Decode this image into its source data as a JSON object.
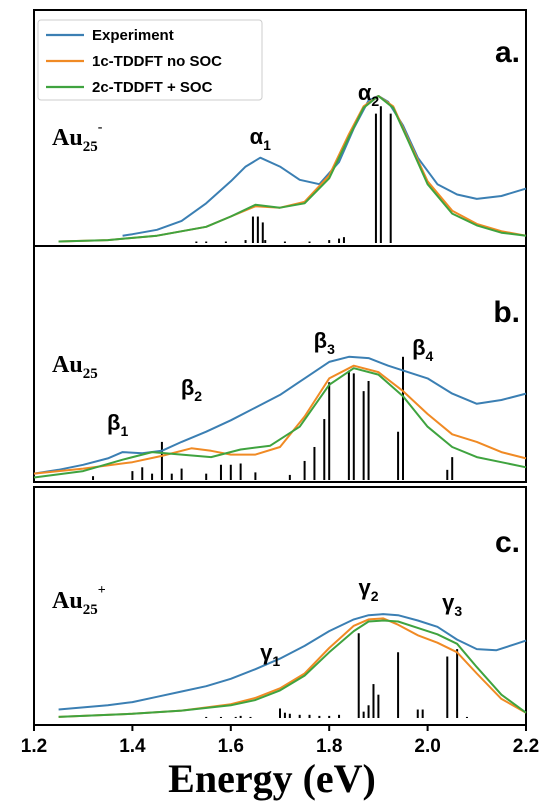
{
  "figure": {
    "xlabel": "Energy (eV)",
    "x_ticks": [
      "1.2",
      "1.4",
      "1.6",
      "1.8",
      "2.0",
      "2.2"
    ]
  },
  "legend": {
    "items": [
      {
        "label": "Experiment",
        "color": "#3b7fb3"
      },
      {
        "label": "1c-TDDFT no SOC",
        "color": "#f08a24"
      },
      {
        "label": "2c-TDDFT + SOC",
        "color": "#3fa33f"
      }
    ]
  },
  "panels": [
    {
      "letter": "a.",
      "species": {
        "base": "Au",
        "sub": "25",
        "sup": "-"
      },
      "peaks": [
        {
          "base": "α",
          "sub": "1",
          "x": 1.66
        },
        {
          "base": "α",
          "sub": "2",
          "x": 1.88
        }
      ]
    },
    {
      "letter": "b.",
      "species": {
        "base": "Au",
        "sub": "25",
        "sup": ""
      },
      "peaks": [
        {
          "base": "β",
          "sub": "1",
          "x": 1.37
        },
        {
          "base": "β",
          "sub": "2",
          "x": 1.52
        },
        {
          "base": "β",
          "sub": "3",
          "x": 1.79
        },
        {
          "base": "β",
          "sub": "4",
          "x": 1.99
        }
      ]
    },
    {
      "letter": "c.",
      "species": {
        "base": "Au",
        "sub": "25",
        "sup": "+"
      },
      "peaks": [
        {
          "base": "γ",
          "sub": "1",
          "x": 1.68
        },
        {
          "base": "γ",
          "sub": "2",
          "x": 1.88
        },
        {
          "base": "γ",
          "sub": "3",
          "x": 2.05
        }
      ]
    }
  ],
  "chart_data": [
    {
      "type": "line",
      "panel": "a",
      "xlim": [
        1.2,
        2.2
      ],
      "ylim": [
        0,
        1.05
      ],
      "series": [
        {
          "name": "Experiment",
          "color": "#3b7fb3",
          "x": [
            1.38,
            1.4,
            1.45,
            1.5,
            1.55,
            1.6,
            1.63,
            1.66,
            1.7,
            1.74,
            1.78,
            1.82,
            1.85,
            1.88,
            1.9,
            1.92,
            1.95,
            1.98,
            2.02,
            2.06,
            2.1,
            2.15,
            2.2
          ],
          "y": [
            0.05,
            0.06,
            0.09,
            0.15,
            0.27,
            0.42,
            0.52,
            0.58,
            0.52,
            0.43,
            0.4,
            0.55,
            0.78,
            0.97,
            1.0,
            0.96,
            0.8,
            0.58,
            0.4,
            0.33,
            0.3,
            0.32,
            0.37
          ]
        },
        {
          "name": "1c-TDDFT no SOC",
          "color": "#f08a24",
          "x": [
            1.25,
            1.35,
            1.45,
            1.55,
            1.6,
            1.65,
            1.7,
            1.75,
            1.8,
            1.84,
            1.87,
            1.9,
            1.93,
            1.96,
            2.0,
            2.05,
            2.1,
            2.15,
            2.2
          ],
          "y": [
            0.01,
            0.02,
            0.05,
            0.11,
            0.18,
            0.25,
            0.24,
            0.28,
            0.46,
            0.74,
            0.93,
            1.0,
            0.93,
            0.71,
            0.42,
            0.22,
            0.13,
            0.08,
            0.05
          ]
        },
        {
          "name": "2c-TDDFT + SOC",
          "color": "#3fa33f",
          "x": [
            1.25,
            1.35,
            1.45,
            1.55,
            1.6,
            1.65,
            1.7,
            1.75,
            1.8,
            1.84,
            1.87,
            1.9,
            1.93,
            1.96,
            2.0,
            2.05,
            2.1,
            2.15,
            2.2
          ],
          "y": [
            0.01,
            0.02,
            0.05,
            0.11,
            0.18,
            0.26,
            0.24,
            0.27,
            0.44,
            0.72,
            0.92,
            1.0,
            0.92,
            0.7,
            0.4,
            0.2,
            0.12,
            0.07,
            0.05
          ]
        }
      ],
      "sticks": {
        "x": [
          1.53,
          1.55,
          1.59,
          1.63,
          1.645,
          1.655,
          1.665,
          1.67,
          1.71,
          1.76,
          1.8,
          1.82,
          1.83,
          1.895,
          1.905,
          1.925
        ],
        "y": [
          0.01,
          0.01,
          0.01,
          0.02,
          0.18,
          0.18,
          0.14,
          0.02,
          0.01,
          0.01,
          0.02,
          0.03,
          0.04,
          0.88,
          0.93,
          0.88
        ]
      }
    },
    {
      "type": "line",
      "panel": "b",
      "xlim": [
        1.2,
        2.2
      ],
      "ylim": [
        0,
        1.05
      ],
      "series": [
        {
          "name": "Experiment",
          "color": "#3b7fb3",
          "x": [
            1.2,
            1.25,
            1.3,
            1.35,
            1.38,
            1.42,
            1.46,
            1.5,
            1.55,
            1.6,
            1.65,
            1.7,
            1.75,
            1.8,
            1.84,
            1.88,
            1.92,
            1.96,
            2.0,
            2.05,
            2.1,
            2.15,
            2.2
          ],
          "y": [
            0.05,
            0.08,
            0.12,
            0.17,
            0.22,
            0.21,
            0.23,
            0.3,
            0.38,
            0.47,
            0.57,
            0.67,
            0.8,
            0.93,
            0.97,
            0.96,
            0.9,
            0.85,
            0.8,
            0.68,
            0.6,
            0.63,
            0.68
          ]
        },
        {
          "name": "1c-TDDFT no SOC",
          "color": "#f08a24",
          "x": [
            1.2,
            1.3,
            1.4,
            1.46,
            1.52,
            1.56,
            1.6,
            1.65,
            1.7,
            1.75,
            1.8,
            1.85,
            1.9,
            1.95,
            2.0,
            2.05,
            2.1,
            2.15,
            2.2
          ],
          "y": [
            0.05,
            0.09,
            0.14,
            0.19,
            0.25,
            0.23,
            0.2,
            0.2,
            0.26,
            0.5,
            0.8,
            0.9,
            0.85,
            0.7,
            0.52,
            0.36,
            0.3,
            0.22,
            0.17
          ]
        },
        {
          "name": "2c-TDDFT + SOC",
          "color": "#3fa33f",
          "x": [
            1.2,
            1.3,
            1.38,
            1.44,
            1.5,
            1.56,
            1.62,
            1.68,
            1.74,
            1.8,
            1.85,
            1.9,
            1.95,
            2.0,
            2.05,
            2.1,
            2.15,
            2.2
          ],
          "y": [
            0.02,
            0.07,
            0.16,
            0.22,
            0.2,
            0.18,
            0.24,
            0.27,
            0.42,
            0.75,
            0.88,
            0.83,
            0.66,
            0.42,
            0.26,
            0.18,
            0.14,
            0.1
          ]
        }
      ],
      "sticks": {
        "x": [
          1.32,
          1.4,
          1.42,
          1.44,
          1.46,
          1.48,
          1.5,
          1.55,
          1.58,
          1.6,
          1.62,
          1.65,
          1.72,
          1.75,
          1.77,
          1.79,
          1.8,
          1.84,
          1.85,
          1.87,
          1.88,
          1.94,
          1.95,
          2.04,
          2.05
        ],
        "y": [
          0.03,
          0.07,
          0.1,
          0.05,
          0.3,
          0.05,
          0.09,
          0.05,
          0.12,
          0.12,
          0.13,
          0.06,
          0.04,
          0.15,
          0.26,
          0.48,
          0.77,
          0.86,
          0.84,
          0.7,
          0.78,
          0.38,
          0.97,
          0.08,
          0.18
        ]
      }
    },
    {
      "type": "line",
      "panel": "c",
      "xlim": [
        1.2,
        2.2
      ],
      "ylim": [
        0,
        1.05
      ],
      "series": [
        {
          "name": "Experiment",
          "color": "#3b7fb3",
          "x": [
            1.25,
            1.3,
            1.35,
            1.4,
            1.45,
            1.5,
            1.55,
            1.6,
            1.65,
            1.7,
            1.75,
            1.8,
            1.85,
            1.88,
            1.91,
            1.94,
            1.98,
            2.02,
            2.06,
            2.1,
            2.14,
            2.18,
            2.2
          ],
          "y": [
            0.08,
            0.1,
            0.12,
            0.15,
            0.2,
            0.25,
            0.3,
            0.37,
            0.46,
            0.56,
            0.68,
            0.82,
            0.93,
            0.97,
            0.98,
            0.97,
            0.92,
            0.86,
            0.74,
            0.65,
            0.64,
            0.7,
            0.73
          ]
        },
        {
          "name": "1c-TDDFT no SOC",
          "color": "#f08a24",
          "x": [
            1.25,
            1.4,
            1.5,
            1.6,
            1.65,
            1.7,
            1.75,
            1.8,
            1.85,
            1.88,
            1.91,
            1.94,
            1.98,
            2.02,
            2.06,
            2.1,
            2.15,
            2.2
          ],
          "y": [
            0.01,
            0.04,
            0.07,
            0.13,
            0.19,
            0.28,
            0.42,
            0.66,
            0.87,
            0.93,
            0.94,
            0.88,
            0.78,
            0.71,
            0.62,
            0.42,
            0.18,
            0.05
          ]
        },
        {
          "name": "2c-TDDFT + SOC",
          "color": "#3fa33f",
          "x": [
            1.25,
            1.4,
            1.5,
            1.6,
            1.65,
            1.7,
            1.75,
            1.8,
            1.85,
            1.88,
            1.91,
            1.94,
            1.98,
            2.02,
            2.06,
            2.1,
            2.15,
            2.2
          ],
          "y": [
            0.01,
            0.04,
            0.07,
            0.12,
            0.17,
            0.26,
            0.4,
            0.62,
            0.82,
            0.91,
            0.92,
            0.91,
            0.85,
            0.79,
            0.7,
            0.48,
            0.22,
            0.05
          ]
        }
      ],
      "sticks": {
        "x": [
          1.55,
          1.58,
          1.61,
          1.62,
          1.64,
          1.7,
          1.71,
          1.72,
          1.74,
          1.76,
          1.78,
          1.8,
          1.82,
          1.86,
          1.87,
          1.88,
          1.89,
          1.9,
          1.94,
          1.98,
          1.99,
          2.04,
          2.06,
          2.08
        ],
        "y": [
          0.01,
          0.01,
          0.01,
          0.02,
          0.01,
          0.09,
          0.05,
          0.04,
          0.03,
          0.03,
          0.02,
          0.02,
          0.03,
          0.8,
          0.06,
          0.12,
          0.32,
          0.22,
          0.62,
          0.08,
          0.08,
          0.58,
          0.65,
          0.01
        ]
      }
    }
  ]
}
